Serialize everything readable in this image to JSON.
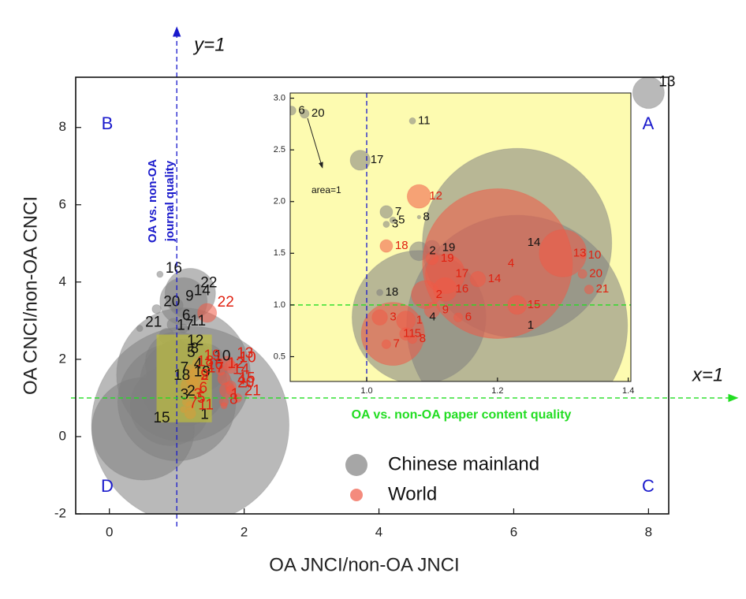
{
  "chart_data": [
    {
      "type": "bubble",
      "x_label": "OA JNCI/non-OA JNCI",
      "y_label": "OA CNCI/non-OA CNCI",
      "xlim": [
        -0.5,
        8.3
      ],
      "ylim": [
        -2,
        9.3
      ],
      "xticks": [
        0,
        2,
        4,
        6,
        8
      ],
      "yticks": [
        -2,
        0,
        2,
        4,
        6,
        8
      ],
      "legend": "lower-center",
      "zoom_box": {
        "xlim": [
          0.7,
          1.52
        ],
        "ylim": [
          0.37,
          2.64
        ],
        "color": "#c8c832"
      },
      "quadrants": [
        {
          "label": "A",
          "corner": "top-right"
        },
        {
          "label": "B",
          "corner": "top-left"
        },
        {
          "label": "C",
          "corner": "bottom-right"
        },
        {
          "label": "D",
          "corner": "bottom-left"
        }
      ],
      "ref_lines": [
        {
          "orientation": "vertical",
          "value": 1,
          "label": "y=1",
          "note": [
            "OA vs. non-OA",
            "journal quality"
          ],
          "color": "#1a1acc"
        },
        {
          "orientation": "horizontal",
          "value": 1,
          "label": "x=1",
          "note": [
            "OA vs. non-OA paper content quality"
          ],
          "color": "#22dd22"
        }
      ],
      "series": [
        {
          "name": "Chinese mainland",
          "color": "#808080",
          "labels": [
            "1",
            "2",
            "3",
            "4",
            "5",
            "6",
            "7",
            "8",
            "9",
            "10",
            "11",
            "12",
            "13",
            "14",
            "15",
            "16",
            "17",
            "18",
            "19",
            "20",
            "21",
            "22"
          ],
          "x": [
            1.2,
            1.0,
            0.9,
            1.1,
            1.0,
            0.95,
            0.9,
            1.05,
            1.0,
            1.4,
            1.1,
            1.0,
            8.0,
            1.1,
            0.5,
            0.75,
            0.85,
            0.8,
            1.1,
            0.7,
            0.45,
            1.2
          ],
          "y": [
            0.3,
            0.9,
            0.8,
            1.6,
            1.9,
            2.9,
            1.5,
            2.0,
            3.4,
            1.8,
            2.8,
            2.2,
            8.9,
            3.5,
            0.2,
            4.2,
            2.6,
            1.3,
            1.4,
            3.3,
            2.8,
            3.7
          ],
          "sizes": [
            980,
            350,
            160,
            450,
            100,
            4,
            25,
            9,
            4,
            56,
            2,
            14,
            25,
            56,
            264,
            1,
            6,
            39,
            190,
            2,
            1,
            64
          ]
        },
        {
          "name": "World",
          "color": "#f05a46",
          "labels": [
            "1",
            "2",
            "3",
            "4",
            "5",
            "6",
            "7",
            "8",
            "9",
            "10",
            "11",
            "12",
            "13",
            "14",
            "15",
            "16",
            "17",
            "18",
            "19",
            "20",
            "21",
            "22"
          ],
          "x": [
            1.7,
            1.2,
            1.15,
            1.75,
            1.2,
            1.25,
            1.1,
            1.7,
            1.25,
            1.8,
            1.2,
            1.65,
            1.75,
            1.7,
            1.8,
            1.3,
            1.3,
            1.2,
            1.3,
            1.8,
            1.9,
            1.45
          ],
          "y": [
            0.9,
            1.3,
            0.9,
            1.2,
            0.8,
            1.1,
            0.7,
            0.8,
            1.4,
            1.8,
            0.6,
            1.7,
            1.9,
            1.5,
            1.3,
            1.6,
            1.5,
            1.75,
            1.9,
            1.2,
            1.0,
            3.2
          ],
          "sizes": [
            2,
            9,
            2,
            6,
            2,
            1,
            1,
            1,
            2,
            4,
            3,
            2,
            5,
            4,
            3,
            5,
            12,
            2,
            2,
            2,
            2,
            9
          ]
        }
      ]
    },
    {
      "type": "bubble",
      "xlim": [
        0.883,
        1.404
      ],
      "ylim": [
        0.26,
        3.05
      ],
      "xticks": [
        {
          "value": 1,
          "label": "1.0"
        },
        {
          "value": 1.2,
          "label": "1.2"
        },
        {
          "value": 1.4,
          "label": "1.4"
        }
      ],
      "yticks": [
        0.5,
        {
          "value": 1,
          "label": "1.0"
        },
        1.5,
        {
          "value": 2,
          "label": "2.0"
        },
        2.5,
        {
          "value": 3,
          "label": "3.0"
        }
      ],
      "background": "#fdfbb0",
      "annotation": "area=1",
      "ref_lines": [
        {
          "orientation": "vertical",
          "value": 1,
          "color": "#1a1acc"
        },
        {
          "orientation": "horizontal",
          "value": 1,
          "color": "#22dd22"
        }
      ],
      "series": [
        {
          "color": "#808080",
          "labels": [
            "1",
            "2",
            "3",
            "4",
            "5",
            "6",
            "7",
            "8",
            "11",
            "14",
            "17",
            "18",
            "19",
            "20"
          ],
          "x": [
            1.23,
            1.08,
            1.03,
            1.08,
            1.04,
            0.885,
            1.03,
            1.08,
            1.07,
            1.23,
            0.99,
            1.02,
            1.1,
            0.905
          ],
          "y": [
            0.8,
            1.52,
            1.78,
            0.88,
            1.82,
            2.88,
            1.9,
            1.85,
            2.78,
            1.6,
            2.4,
            1.12,
            1.55,
            2.85
          ],
          "sizes": [
            1225,
            9,
            1,
            450,
            1,
            2,
            4,
            0.3,
            1,
            900,
            10,
            1,
            6,
            2
          ]
        },
        {
          "color": "#f05a46",
          "labels": [
            "1",
            "2",
            "3",
            "4",
            "5",
            "6",
            "7",
            "8",
            "9",
            "10",
            "11",
            "12",
            "13",
            "14",
            "15",
            "16",
            "17",
            "18",
            "19",
            "20",
            "21"
          ],
          "x": [
            1.06,
            1.09,
            1.02,
            1.2,
            1.06,
            1.14,
            1.03,
            1.07,
            1.1,
            1.33,
            1.04,
            1.08,
            1.3,
            1.17,
            1.23,
            1.12,
            1.12,
            1.03,
            1.1,
            1.33,
            1.34
          ],
          "y": [
            0.85,
            1.1,
            0.88,
            1.4,
            0.72,
            0.88,
            0.62,
            0.67,
            0.95,
            1.48,
            0.72,
            2.05,
            1.5,
            1.25,
            1.0,
            1.15,
            1.3,
            1.57,
            1.45,
            1.3,
            1.15
          ],
          "sizes": [
            9,
            20,
            6,
            564,
            4,
            2,
            2,
            2,
            6,
            1,
            100,
            14,
            56,
            6,
            9,
            14,
            39,
            4,
            4,
            2,
            2
          ]
        }
      ]
    }
  ]
}
